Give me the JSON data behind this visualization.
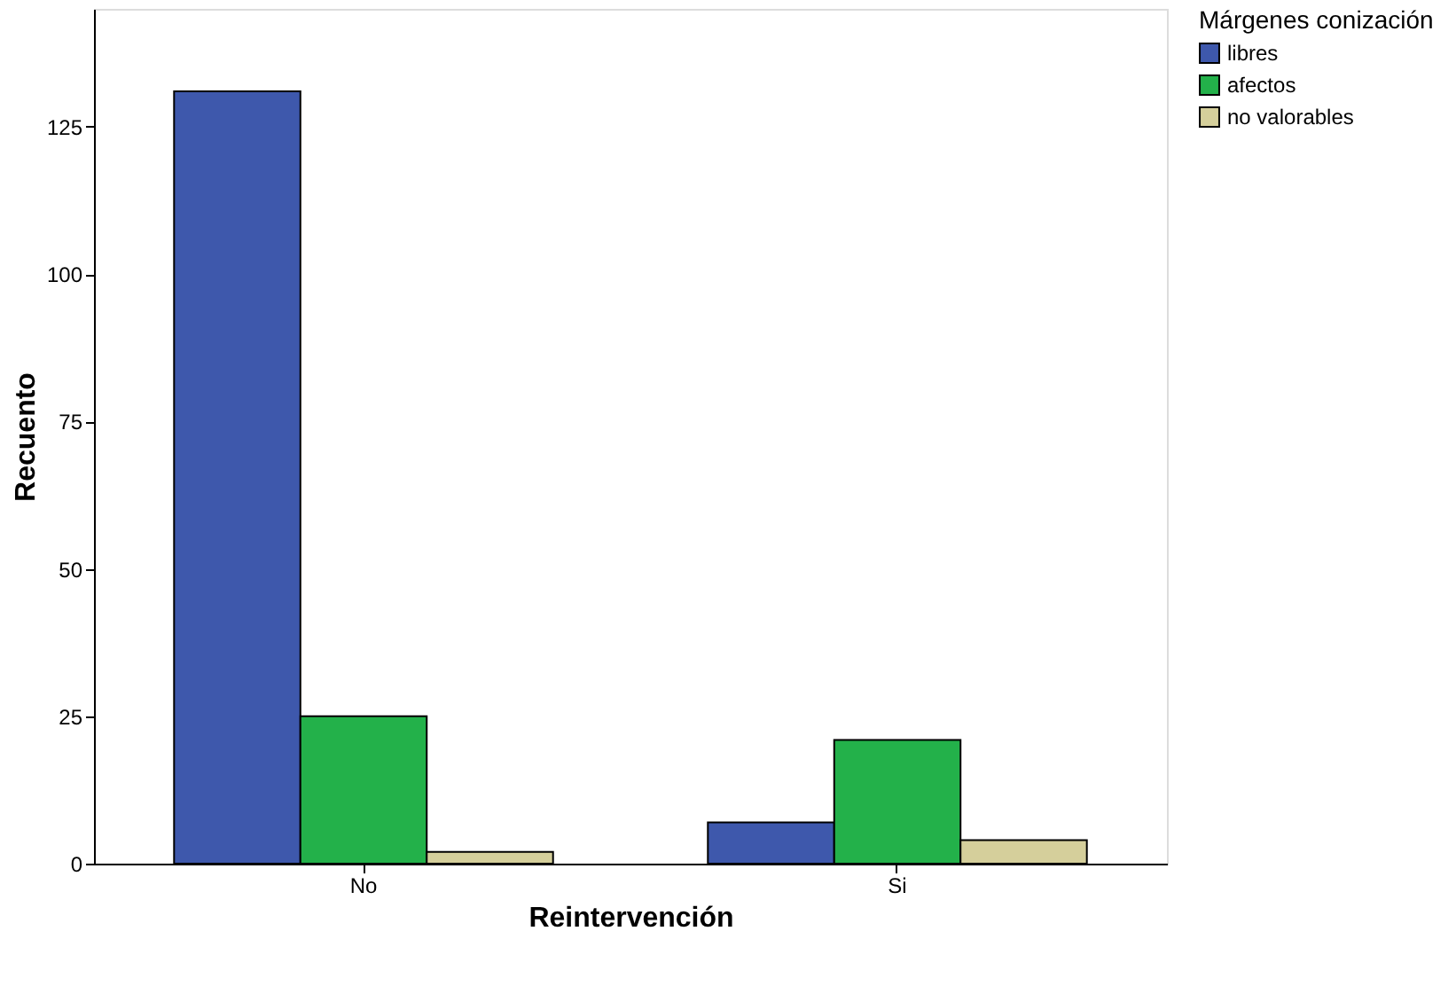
{
  "chart_data": {
    "type": "bar",
    "xlabel": "Reintervención",
    "ylabel": "Recuento",
    "legend_title": "Márgenes conización",
    "categories": [
      "No",
      "Si"
    ],
    "series": [
      {
        "name": "libres",
        "color": "#3e58ac",
        "values": [
          131,
          7
        ]
      },
      {
        "name": "afectos",
        "color": "#23b14a",
        "values": [
          25,
          21
        ]
      },
      {
        "name": "no valorables",
        "color": "#d5cf9b",
        "values": [
          2,
          4
        ]
      }
    ],
    "ylim": [
      0,
      145
    ],
    "yticks": [
      0,
      25,
      50,
      75,
      100,
      125
    ],
    "grid": false,
    "legend": "top right"
  }
}
